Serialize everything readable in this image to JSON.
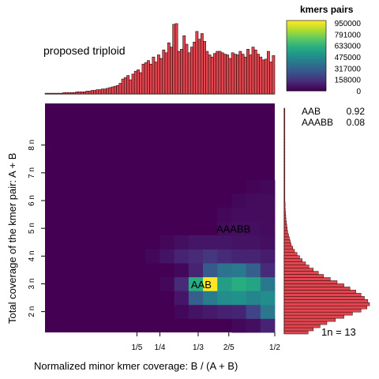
{
  "chart_data": {
    "type": "heatmap",
    "title": "",
    "top_label": "proposed triploid",
    "xlabel": "Normalized minor kmer coverage: B / (A + B)",
    "ylabel": "Total coverage of the kmer pair: A + B",
    "x_range": [
      0.0,
      0.5
    ],
    "y_range_n": [
      1.25,
      9.5
    ],
    "x_ticks": [
      {
        "label": "1/5",
        "value": 0.2
      },
      {
        "label": "1/4",
        "value": 0.25
      },
      {
        "label": "1/3",
        "value": 0.3333
      },
      {
        "label": "2/5",
        "value": 0.4
      },
      {
        "label": "1/2",
        "value": 0.5
      }
    ],
    "y_ticks": [
      {
        "label": "2 n",
        "value": 2
      },
      {
        "label": "3 n",
        "value": 3
      },
      {
        "label": "4 n",
        "value": 4
      },
      {
        "label": "5 n",
        "value": 5
      },
      {
        "label": "6 n",
        "value": 6
      },
      {
        "label": "7 n",
        "value": 7
      },
      {
        "label": "8 n",
        "value": 8
      }
    ],
    "grid": {
      "x_bins": 16,
      "y_bins": 16,
      "y_bin_size_n": 0.5,
      "y_start_n": 1.25,
      "note": "Rows list density values from the lowest coverage bin upward (0 = background)."
    },
    "cells": [
      [
        0,
        0,
        0,
        0,
        0,
        0,
        0,
        0,
        0,
        0,
        0,
        0,
        0,
        0.02,
        0.04,
        0.1
      ],
      [
        0,
        0,
        0,
        0,
        0,
        0,
        0,
        0,
        0,
        0.02,
        0.05,
        0.07,
        0.09,
        0.1,
        0.2,
        0.4
      ],
      [
        0,
        0,
        0,
        0,
        0,
        0,
        0,
        0,
        0,
        0.06,
        0.3,
        0.42,
        0.48,
        0.5,
        0.45,
        0.48
      ],
      [
        0,
        0,
        0,
        0,
        0,
        0,
        0,
        0,
        0.02,
        0.12,
        0.62,
        1.0,
        0.55,
        0.62,
        0.58,
        0.4
      ],
      [
        0,
        0,
        0,
        0,
        0,
        0,
        0,
        0,
        0,
        0.02,
        0.1,
        0.28,
        0.38,
        0.4,
        0.3,
        0.12
      ],
      [
        0,
        0,
        0,
        0,
        0,
        0,
        0,
        0.02,
        0.05,
        0.1,
        0.12,
        0.16,
        0.12,
        0.1,
        0.1,
        0.08
      ],
      [
        0,
        0,
        0,
        0,
        0,
        0,
        0,
        0,
        0.02,
        0.04,
        0.06,
        0.06,
        0.06,
        0.05,
        0.05,
        0.04
      ],
      [
        0,
        0,
        0,
        0,
        0,
        0,
        0,
        0,
        0,
        0,
        0,
        0,
        0.03,
        0.04,
        0.04,
        0.03
      ],
      [
        0,
        0,
        0,
        0,
        0,
        0,
        0,
        0,
        0,
        0,
        0,
        0,
        0.02,
        0.03,
        0.03,
        0.03
      ],
      [
        0,
        0,
        0,
        0,
        0,
        0,
        0,
        0,
        0,
        0,
        0,
        0,
        0,
        0.02,
        0.03,
        0.03
      ],
      [
        0,
        0,
        0,
        0,
        0,
        0,
        0,
        0,
        0,
        0,
        0,
        0,
        0,
        0,
        0.01,
        0.02
      ],
      [
        0,
        0,
        0,
        0,
        0,
        0,
        0,
        0,
        0,
        0,
        0,
        0,
        0,
        0,
        0,
        0
      ],
      [
        0,
        0,
        0,
        0,
        0,
        0,
        0,
        0,
        0,
        0,
        0,
        0,
        0,
        0,
        0,
        0
      ],
      [
        0,
        0,
        0,
        0,
        0,
        0,
        0,
        0,
        0,
        0,
        0,
        0,
        0,
        0,
        0,
        0
      ],
      [
        0,
        0,
        0,
        0,
        0,
        0,
        0,
        0,
        0,
        0,
        0,
        0,
        0,
        0,
        0,
        0
      ],
      [
        0,
        0,
        0,
        0,
        0,
        0,
        0,
        0,
        0,
        0,
        0,
        0,
        0,
        0,
        0,
        0
      ]
    ],
    "annotations": [
      {
        "label": "AAB",
        "x": 0.34,
        "y_n": 2.85
      },
      {
        "label": "AAABB",
        "x": 0.41,
        "y_n": 4.85
      }
    ],
    "top_histogram": [
      0.01,
      0.01,
      0.01,
      0.01,
      0.01,
      0.01,
      0.01,
      0.02,
      0.02,
      0.02,
      0.02,
      0.02,
      0.03,
      0.03,
      0.03,
      0.03,
      0.04,
      0.04,
      0.05,
      0.05,
      0.06,
      0.06,
      0.07,
      0.07,
      0.08,
      0.09,
      0.1,
      0.11,
      0.12,
      0.15,
      0.21,
      0.23,
      0.26,
      0.2,
      0.28,
      0.32,
      0.34,
      0.3,
      0.42,
      0.44,
      0.47,
      0.42,
      0.52,
      0.45,
      0.55,
      0.5,
      0.62,
      0.58,
      0.72,
      0.66,
      0.98,
      0.99,
      0.6,
      0.63,
      0.82,
      0.7,
      0.58,
      0.66,
      0.73,
      0.88,
      0.77,
      0.85,
      0.74,
      0.6,
      0.55,
      0.52,
      0.57,
      0.6,
      0.6,
      0.58,
      0.56,
      0.55,
      0.5,
      0.58,
      0.56,
      0.55,
      0.6,
      0.56,
      0.52,
      0.63,
      0.55,
      0.66,
      0.62,
      0.56,
      0.52,
      0.48,
      0.49,
      0.6,
      0.45,
      0.54
    ],
    "right_histogram": [
      0.28,
      0.34,
      0.42,
      0.5,
      0.6,
      0.7,
      0.8,
      0.9,
      0.97,
      1.0,
      0.98,
      0.94,
      0.9,
      0.84,
      0.77,
      0.7,
      0.62,
      0.54,
      0.46,
      0.4,
      0.34,
      0.29,
      0.25,
      0.21,
      0.18,
      0.15,
      0.12,
      0.1,
      0.08,
      0.07,
      0.06,
      0.05,
      0.04,
      0.035,
      0.03,
      0.025,
      0.02,
      0.018,
      0.015,
      0.012,
      0.01,
      0.01,
      0.008,
      0.007,
      0.006,
      0.005,
      0.004,
      0.004,
      0.003,
      0.003,
      0.002,
      0.002,
      0.002,
      0.002,
      0.001,
      0.001,
      0.001,
      0.001,
      0.001,
      0.001,
      0.001,
      0.001,
      0.001,
      0.001,
      0.001,
      0.001,
      0.001,
      0.001,
      0.001,
      0.001,
      0.001,
      0.001
    ],
    "legend": {
      "title": "kmers pairs",
      "labels": [
        "950000",
        "791000",
        "633000",
        "475000",
        "317000",
        "158000",
        "0"
      ]
    },
    "ploidy_estimates": [
      {
        "label": "AAB",
        "value": "0.92"
      },
      {
        "label": "AAABB",
        "value": "0.08"
      }
    ],
    "one_n_text": "1n =  13",
    "colors": {
      "hist_fill": "#e0464f",
      "hist_stroke": "#2a0a0a",
      "viridis": [
        "#440154",
        "#472d7b",
        "#3b528b",
        "#2c728e",
        "#21918c",
        "#28ae80",
        "#5ec962",
        "#addc30",
        "#fde725"
      ]
    }
  }
}
